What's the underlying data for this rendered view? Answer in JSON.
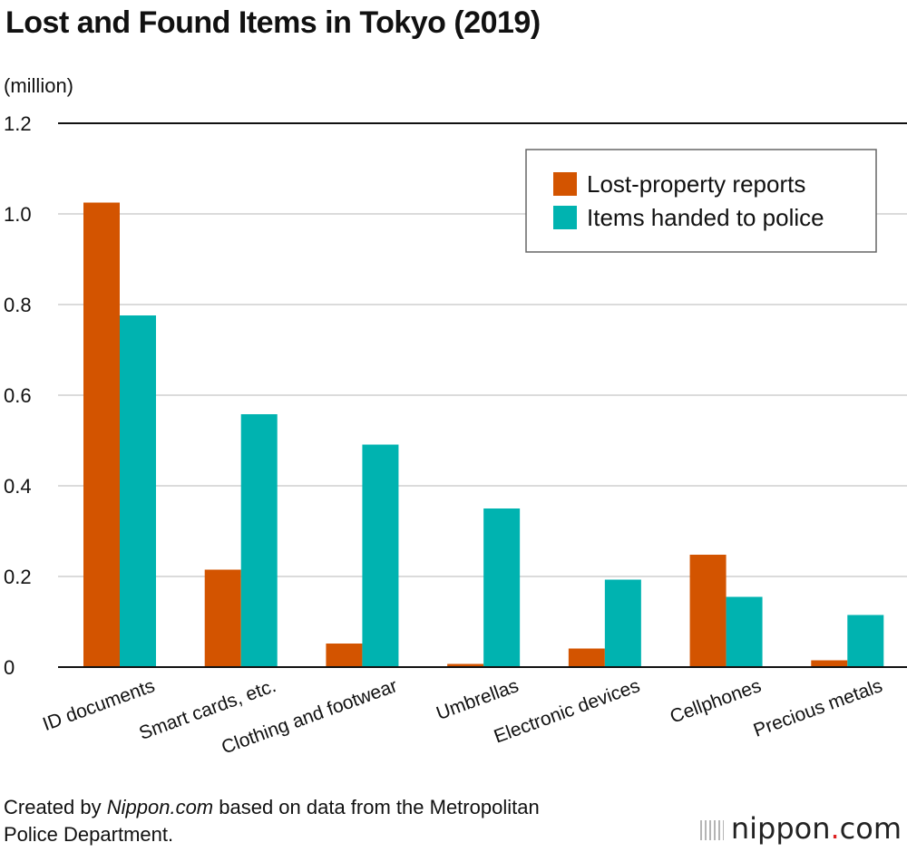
{
  "title": "Lost and Found Items in Tokyo (2019)",
  "unit_label": "(million)",
  "footer": {
    "prefix": "Created by ",
    "source_italic": "Nippon.com",
    "line1_rest": " based on data from the Metropolitan",
    "line2": "Police Department."
  },
  "brand": {
    "name": "nippon",
    "dot": ".",
    "tld": "com"
  },
  "chart_data": {
    "type": "bar",
    "title": "Lost and Found Items in Tokyo (2019)",
    "ylabel": "(million)",
    "xlabel": "",
    "ylim": [
      0,
      1.2
    ],
    "yticks": [
      {
        "value": 0,
        "label": "0"
      },
      {
        "value": 0.2,
        "label": "0.2"
      },
      {
        "value": 0.4,
        "label": "0.4"
      },
      {
        "value": 0.6,
        "label": "0.6"
      },
      {
        "value": 0.8,
        "label": "0.8"
      },
      {
        "value": 1.0,
        "label": "1.0"
      },
      {
        "value": 1.2,
        "label": "1.2"
      }
    ],
    "grid": true,
    "legend_position": "top-right",
    "categories": [
      "ID documents",
      "Smart cards, etc.",
      "Clothing and footwear",
      "Umbrellas",
      "Electronic devices",
      "Cellphones",
      "Precious metals"
    ],
    "series": [
      {
        "name": "Lost-property reports",
        "color": "#d35400",
        "values": [
          1.025,
          0.215,
          0.052,
          0.007,
          0.041,
          0.248,
          0.015
        ]
      },
      {
        "name": "Items handed to police",
        "color": "#00b3b0",
        "values": [
          0.776,
          0.558,
          0.491,
          0.35,
          0.193,
          0.155,
          0.115
        ]
      }
    ]
  }
}
